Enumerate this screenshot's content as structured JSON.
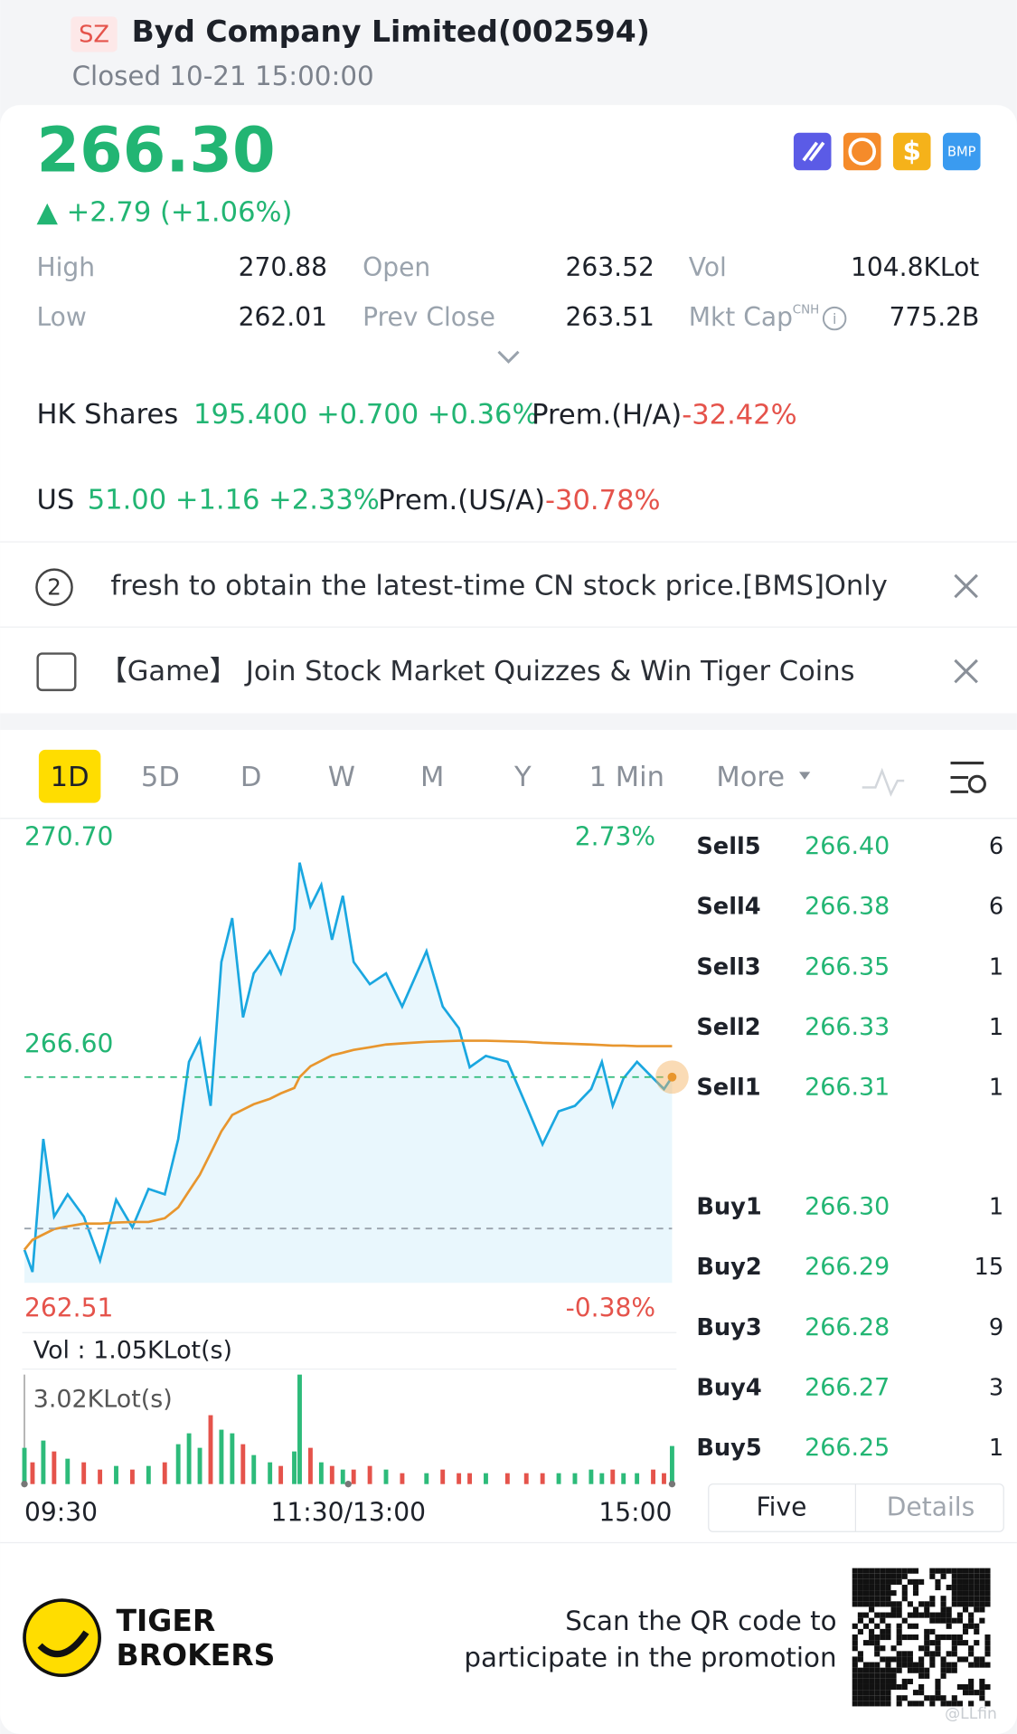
{
  "header": {
    "market": "SZ",
    "title": "Byd Company Limited(002594)",
    "status": "Closed 10-21 15:00:00"
  },
  "quote": {
    "price": "266.30",
    "change": "▲ +2.79 (+1.06%)",
    "icons": [
      "BMP"
    ]
  },
  "stats": [
    [
      "High",
      "270.88",
      "Open",
      "263.52",
      "Vol",
      "104.8KLot"
    ],
    [
      "Low",
      "262.01",
      "Prev Close",
      "263.51",
      "Mkt Cap",
      "775.2B"
    ]
  ],
  "stats_sup": "CNH",
  "cross": [
    {
      "label": "HK Shares",
      "quote": "195.400 +0.700 +0.36%",
      "prem_label": "Prem.(H/A)",
      "prem": "-32.42%"
    },
    {
      "label": "US",
      "quote": "51.00 +1.16 +2.33%",
      "prem_label": "Prem.(US/A)",
      "prem": "-30.78%"
    }
  ],
  "notices": [
    {
      "badge": "2",
      "text": "fresh to obtain the latest-time CN stock price.[BMS]Only"
    },
    {
      "text": "【Game】 Join Stock Market Quizzes & Win Tiger Coins"
    }
  ],
  "tabs": [
    "1D",
    "5D",
    "D",
    "W",
    "M",
    "Y",
    "1 Min",
    "More"
  ],
  "chart_data": {
    "type": "line",
    "x": [
      0,
      3,
      7,
      11,
      16,
      22,
      28,
      34,
      40,
      46,
      52,
      57,
      61,
      65,
      69,
      73,
      77,
      81,
      85,
      91,
      95,
      100,
      102,
      106,
      110,
      114,
      118,
      122,
      128,
      134,
      140,
      149,
      155,
      161,
      165,
      171,
      179,
      186,
      192,
      198,
      204,
      210,
      214,
      218,
      222,
      227,
      233,
      237,
      240
    ],
    "series": [
      {
        "color": "#1aa7e0",
        "values": [
          263.12,
          262.71,
          265.16,
          263.73,
          264.14,
          263.73,
          262.92,
          264.04,
          263.53,
          264.24,
          264.14,
          265.16,
          266.58,
          266.99,
          265.77,
          268.42,
          269.23,
          267.4,
          268.21,
          268.62,
          268.21,
          269.03,
          270.25,
          269.44,
          269.84,
          268.83,
          269.64,
          268.42,
          268.01,
          268.21,
          267.6,
          268.62,
          267.6,
          267.2,
          266.48,
          266.69,
          266.58,
          265.77,
          265.06,
          265.67,
          265.77,
          266.08,
          266.58,
          265.77,
          266.28,
          266.58,
          266.28,
          266.08,
          266.3
        ]
      },
      {
        "color": "#e8962e",
        "values": [
          263.12,
          263.3,
          263.4,
          263.5,
          263.55,
          263.6,
          263.6,
          263.62,
          263.63,
          263.63,
          263.7,
          263.9,
          264.2,
          264.5,
          264.9,
          265.3,
          265.6,
          265.7,
          265.8,
          265.9,
          266.0,
          266.1,
          266.3,
          266.5,
          266.6,
          266.7,
          266.75,
          266.8,
          266.85,
          266.9,
          266.92,
          266.95,
          266.96,
          266.97,
          266.97,
          266.97,
          266.96,
          266.95,
          266.93,
          266.92,
          266.91,
          266.9,
          266.89,
          266.88,
          266.88,
          266.87,
          266.87,
          266.87,
          266.87
        ]
      }
    ],
    "xlim": [
      0,
      240
    ],
    "xticks": [
      {
        "value": 0,
        "label": "09:30"
      },
      {
        "value": 120,
        "label": "11:30/13:00"
      },
      {
        "value": 240,
        "label": "15:00"
      }
    ],
    "ylim": [
      262.51,
      270.7
    ],
    "yticks": [
      {
        "value": 270.7,
        "label": "270.70"
      },
      {
        "value": 266.6,
        "label": "266.60"
      },
      {
        "value": 262.51,
        "label": "262.51"
      }
    ],
    "y2lim": [
      -0.38,
      2.73
    ],
    "y2ticks": [
      {
        "value": 2.73,
        "label": "2.73%"
      },
      {
        "value": -0.38,
        "label": "-0.38%"
      }
    ],
    "reference_lines": [
      {
        "value": 263.51,
        "color": "#9aa3ad"
      },
      {
        "value": 266.3,
        "color": "#2dbb7a"
      }
    ],
    "volume": {
      "label": "Vol :  1.05KLot(s)",
      "max_label": "3.02KLot(s)",
      "ylim": [
        0,
        3.02
      ],
      "up_color": "#2dbb7a",
      "down_color": "#e5534b",
      "values": [
        1.0,
        0.6,
        1.2,
        0.9,
        0.7,
        0.6,
        0.4,
        0.5,
        0.4,
        0.5,
        0.6,
        1.1,
        1.4,
        1.0,
        1.9,
        1.5,
        1.4,
        1.1,
        0.8,
        0.6,
        0.5,
        0.9,
        3.02,
        1.0,
        0.6,
        0.5,
        0.4,
        0.4,
        0.5,
        0.4,
        0.3,
        0.3,
        0.4,
        0.3,
        0.3,
        0.3,
        0.3,
        0.3,
        0.3,
        0.3,
        0.3,
        0.4,
        0.3,
        0.4,
        0.3,
        0.3,
        0.4,
        0.3,
        1.05
      ]
    }
  },
  "order_book": [
    [
      "Sell5",
      "266.40",
      "6"
    ],
    [
      "Sell4",
      "266.38",
      "6"
    ],
    [
      "Sell3",
      "266.35",
      "1"
    ],
    [
      "Sell2",
      "266.33",
      "1"
    ],
    [
      "Sell1",
      "266.31",
      "1"
    ],
    [
      "Buy1",
      "266.30",
      "1"
    ],
    [
      "Buy2",
      "266.29",
      "15"
    ],
    [
      "Buy3",
      "266.28",
      "9"
    ],
    [
      "Buy4",
      "266.27",
      "3"
    ],
    [
      "Buy5",
      "266.25",
      "1"
    ]
  ],
  "book_tabs": [
    "Five",
    "Details"
  ],
  "footer": {
    "brand": [
      "TIGER",
      "BROKERS"
    ],
    "scan": [
      "Scan the QR code to",
      "participate in the promotion"
    ],
    "watermark": "@LLfin"
  }
}
